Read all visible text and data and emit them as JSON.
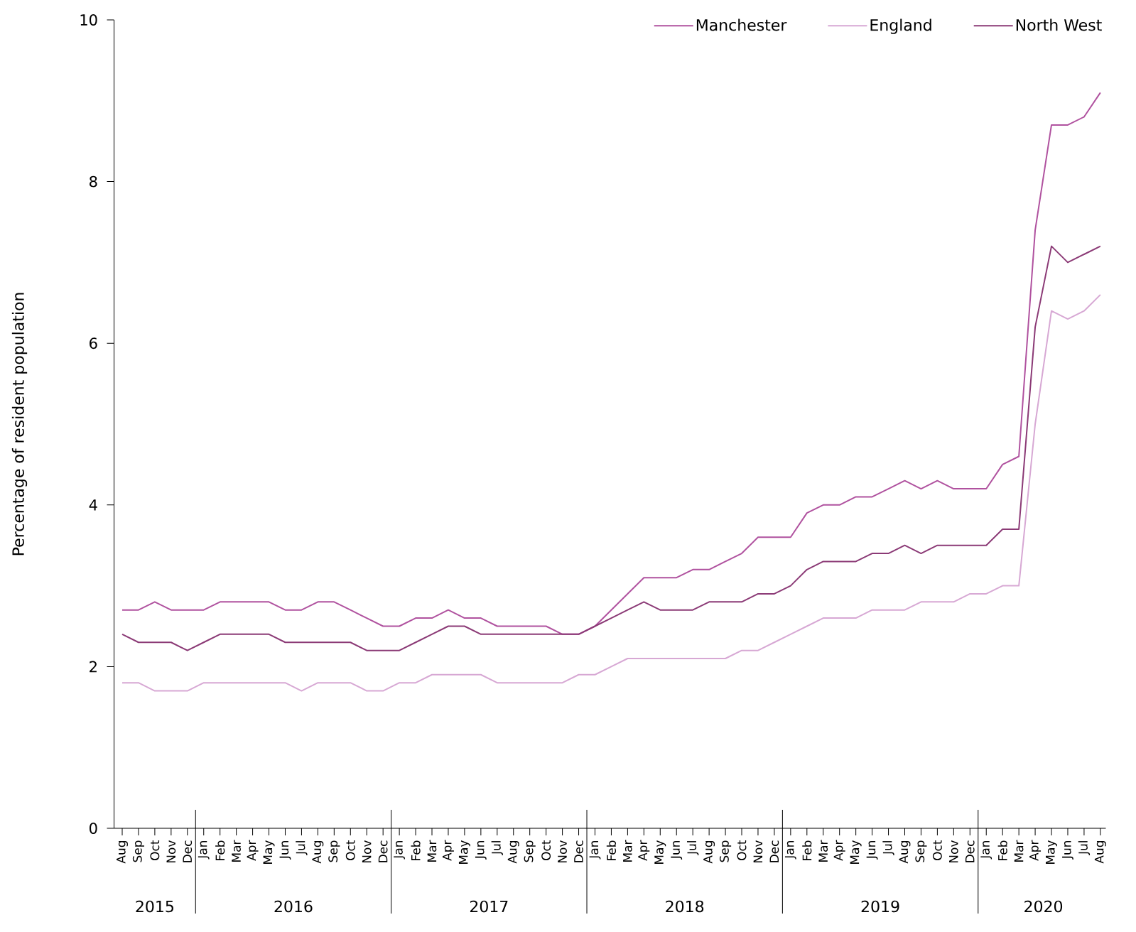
{
  "chart_data": {
    "type": "line",
    "ylabel": "Percentage of resident population",
    "x": [
      "2015-08",
      "2015-09",
      "2015-10",
      "2015-11",
      "2015-12",
      "2016-01",
      "2016-02",
      "2016-03",
      "2016-04",
      "2016-05",
      "2016-06",
      "2016-07",
      "2016-08",
      "2016-09",
      "2016-10",
      "2016-11",
      "2016-12",
      "2017-01",
      "2017-02",
      "2017-03",
      "2017-04",
      "2017-05",
      "2017-06",
      "2017-07",
      "2017-08",
      "2017-09",
      "2017-10",
      "2017-11",
      "2017-12",
      "2018-01",
      "2018-02",
      "2018-03",
      "2018-04",
      "2018-05",
      "2018-06",
      "2018-07",
      "2018-08",
      "2018-09",
      "2018-10",
      "2018-11",
      "2018-12",
      "2019-01",
      "2019-02",
      "2019-03",
      "2019-04",
      "2019-05",
      "2019-06",
      "2019-07",
      "2019-08",
      "2019-09",
      "2019-10",
      "2019-11",
      "2019-12",
      "2020-01",
      "2020-02",
      "2020-03",
      "2020-04",
      "2020-05",
      "2020-06",
      "2020-07",
      "2020-08"
    ],
    "series": [
      {
        "name": "Manchester",
        "color": "#b0529f",
        "values": [
          2.7,
          2.7,
          2.8,
          2.7,
          2.7,
          2.7,
          2.8,
          2.8,
          2.8,
          2.8,
          2.7,
          2.7,
          2.8,
          2.8,
          2.7,
          2.6,
          2.5,
          2.5,
          2.6,
          2.6,
          2.7,
          2.6,
          2.6,
          2.5,
          2.5,
          2.5,
          2.5,
          2.4,
          2.4,
          2.5,
          2.7,
          2.9,
          3.1,
          3.1,
          3.1,
          3.2,
          3.2,
          3.3,
          3.4,
          3.6,
          3.6,
          3.6,
          3.9,
          4.0,
          4.0,
          4.1,
          4.1,
          4.2,
          4.3,
          4.2,
          4.3,
          4.2,
          4.2,
          4.2,
          4.5,
          4.6,
          7.4,
          8.7,
          8.7,
          8.8,
          9.1
        ]
      },
      {
        "name": "England",
        "color": "#d7a8d4",
        "values": [
          1.8,
          1.8,
          1.7,
          1.7,
          1.7,
          1.8,
          1.8,
          1.8,
          1.8,
          1.8,
          1.8,
          1.7,
          1.8,
          1.8,
          1.8,
          1.7,
          1.7,
          1.8,
          1.8,
          1.9,
          1.9,
          1.9,
          1.9,
          1.8,
          1.8,
          1.8,
          1.8,
          1.8,
          1.9,
          1.9,
          2.0,
          2.1,
          2.1,
          2.1,
          2.1,
          2.1,
          2.1,
          2.1,
          2.2,
          2.2,
          2.3,
          2.4,
          2.5,
          2.6,
          2.6,
          2.6,
          2.7,
          2.7,
          2.7,
          2.8,
          2.8,
          2.8,
          2.9,
          2.9,
          3.0,
          3.0,
          5.0,
          6.4,
          6.3,
          6.4,
          6.6
        ]
      },
      {
        "name": "North West",
        "color": "#8b3a76",
        "values": [
          2.4,
          2.3,
          2.3,
          2.3,
          2.2,
          2.3,
          2.4,
          2.4,
          2.4,
          2.4,
          2.3,
          2.3,
          2.3,
          2.3,
          2.3,
          2.2,
          2.2,
          2.2,
          2.3,
          2.4,
          2.5,
          2.5,
          2.4,
          2.4,
          2.4,
          2.4,
          2.4,
          2.4,
          2.4,
          2.5,
          2.6,
          2.7,
          2.8,
          2.7,
          2.7,
          2.7,
          2.8,
          2.8,
          2.8,
          2.9,
          2.9,
          3.0,
          3.2,
          3.3,
          3.3,
          3.3,
          3.4,
          3.4,
          3.5,
          3.4,
          3.5,
          3.5,
          3.5,
          3.5,
          3.7,
          3.7,
          6.2,
          7.2,
          7.0,
          7.1,
          7.2
        ]
      }
    ],
    "xlim": [
      "2015-07-16",
      "2020-08-11"
    ],
    "xticks": [
      {
        "value": "2015-08",
        "label": "Aug"
      },
      {
        "value": "2015-09",
        "label": "Sep"
      },
      {
        "value": "2015-10",
        "label": "Oct"
      },
      {
        "value": "2015-11",
        "label": "Nov"
      },
      {
        "value": "2015-12",
        "label": "Dec"
      },
      {
        "value": "2016-01",
        "label": "Jan"
      },
      {
        "value": "2016-02",
        "label": "Feb"
      },
      {
        "value": "2016-03",
        "label": "Mar"
      },
      {
        "value": "2016-04",
        "label": "Apr"
      },
      {
        "value": "2016-05",
        "label": "May"
      },
      {
        "value": "2016-06",
        "label": "Jun"
      },
      {
        "value": "2016-07",
        "label": "Jul"
      },
      {
        "value": "2016-08",
        "label": "Aug"
      },
      {
        "value": "2016-09",
        "label": "Sep"
      },
      {
        "value": "2016-10",
        "label": "Oct"
      },
      {
        "value": "2016-11",
        "label": "Nov"
      },
      {
        "value": "2016-12",
        "label": "Dec"
      },
      {
        "value": "2017-01",
        "label": "Jan"
      },
      {
        "value": "2017-02",
        "label": "Feb"
      },
      {
        "value": "2017-03",
        "label": "Mar"
      },
      {
        "value": "2017-04",
        "label": "Apr"
      },
      {
        "value": "2017-05",
        "label": "May"
      },
      {
        "value": "2017-06",
        "label": "Jun"
      },
      {
        "value": "2017-07",
        "label": "Jul"
      },
      {
        "value": "2017-08",
        "label": "Aug"
      },
      {
        "value": "2017-09",
        "label": "Sep"
      },
      {
        "value": "2017-10",
        "label": "Oct"
      },
      {
        "value": "2017-11",
        "label": "Nov"
      },
      {
        "value": "2017-12",
        "label": "Dec"
      },
      {
        "value": "2018-01",
        "label": "Jan"
      },
      {
        "value": "2018-02",
        "label": "Feb"
      },
      {
        "value": "2018-03",
        "label": "Mar"
      },
      {
        "value": "2018-04",
        "label": "Apr"
      },
      {
        "value": "2018-05",
        "label": "May"
      },
      {
        "value": "2018-06",
        "label": "Jun"
      },
      {
        "value": "2018-07",
        "label": "Jul"
      },
      {
        "value": "2018-08",
        "label": "Aug"
      },
      {
        "value": "2018-09",
        "label": "Sep"
      },
      {
        "value": "2018-10",
        "label": "Oct"
      },
      {
        "value": "2018-11",
        "label": "Nov"
      },
      {
        "value": "2018-12",
        "label": "Dec"
      },
      {
        "value": "2019-01",
        "label": "Jan"
      },
      {
        "value": "2019-02",
        "label": "Feb"
      },
      {
        "value": "2019-03",
        "label": "Mar"
      },
      {
        "value": "2019-04",
        "label": "Apr"
      },
      {
        "value": "2019-05",
        "label": "May"
      },
      {
        "value": "2019-06",
        "label": "Jun"
      },
      {
        "value": "2019-07",
        "label": "Jul"
      },
      {
        "value": "2019-08",
        "label": "Aug"
      },
      {
        "value": "2019-09",
        "label": "Sep"
      },
      {
        "value": "2019-10",
        "label": "Oct"
      },
      {
        "value": "2019-11",
        "label": "Nov"
      },
      {
        "value": "2019-12",
        "label": "Dec"
      },
      {
        "value": "2020-01",
        "label": "Jan"
      },
      {
        "value": "2020-02",
        "label": "Feb"
      },
      {
        "value": "2020-03",
        "label": "Mar"
      },
      {
        "value": "2020-04",
        "label": "Apr"
      },
      {
        "value": "2020-05",
        "label": "May"
      },
      {
        "value": "2020-06",
        "label": "Jun"
      },
      {
        "value": "2020-07",
        "label": "Jul"
      },
      {
        "value": "2020-08",
        "label": "Aug"
      }
    ],
    "ylim": [
      0,
      10
    ],
    "yticks": [
      0,
      2,
      4,
      6,
      8,
      10
    ],
    "grid": false,
    "legend": "top right",
    "marker": "none",
    "line_style": "solid",
    "annotations": [
      "2015",
      "2016",
      "2017",
      "2018",
      "2019",
      "2020"
    ]
  }
}
